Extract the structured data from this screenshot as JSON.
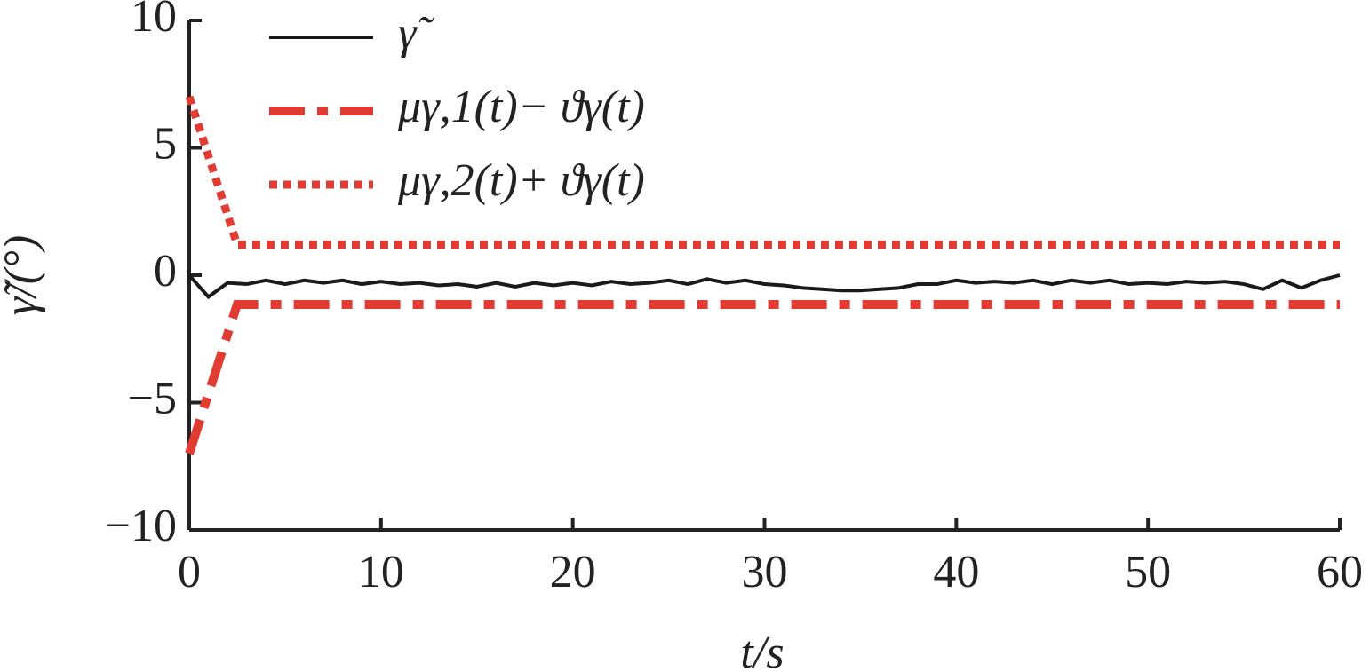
{
  "chart_data": {
    "type": "line",
    "xlabel": "t/s",
    "ylabel": "γ̃/(°)",
    "xlim": [
      0,
      60
    ],
    "ylim": [
      -10,
      10
    ],
    "xticks": [
      0,
      10,
      20,
      30,
      40,
      50,
      60
    ],
    "yticks": [
      {
        "value": -10,
        "label": "−10"
      },
      {
        "value": -5,
        "label": "−5"
      },
      0,
      5,
      10
    ],
    "grid": false,
    "legend": "upper left",
    "series": [
      {
        "name": "γ̃",
        "color": "#1a1a1a",
        "style": "solid",
        "x": [
          0,
          1,
          2,
          3,
          4,
          5,
          6,
          7,
          8,
          9,
          10,
          11,
          12,
          13,
          14,
          15,
          16,
          17,
          18,
          19,
          20,
          21,
          22,
          23,
          24,
          25,
          26,
          27,
          28,
          29,
          30,
          31,
          32,
          33,
          34,
          35,
          36,
          37,
          38,
          39,
          40,
          41,
          42,
          43,
          44,
          45,
          46,
          47,
          48,
          49,
          50,
          51,
          52,
          53,
          54,
          55,
          56,
          57,
          58,
          59,
          60
        ],
        "values": [
          0,
          -0.85,
          -0.3,
          -0.35,
          -0.2,
          -0.35,
          -0.2,
          -0.3,
          -0.2,
          -0.35,
          -0.25,
          -0.35,
          -0.3,
          -0.4,
          -0.35,
          -0.45,
          -0.3,
          -0.45,
          -0.3,
          -0.4,
          -0.3,
          -0.4,
          -0.25,
          -0.35,
          -0.3,
          -0.2,
          -0.35,
          -0.15,
          -0.3,
          -0.2,
          -0.35,
          -0.4,
          -0.5,
          -0.55,
          -0.6,
          -0.6,
          -0.55,
          -0.5,
          -0.35,
          -0.35,
          -0.2,
          -0.3,
          -0.25,
          -0.3,
          -0.2,
          -0.35,
          -0.2,
          -0.3,
          -0.2,
          -0.35,
          -0.3,
          -0.35,
          -0.25,
          -0.3,
          -0.25,
          -0.35,
          -0.55,
          -0.2,
          -0.5,
          -0.2,
          0
        ]
      },
      {
        "name": "μγ,1(t)− ϑγ(t)",
        "color": "#e03c31",
        "style": "dashdot",
        "x": [
          0,
          2.5,
          60
        ],
        "values": [
          -7,
          -1.15,
          -1.15
        ]
      },
      {
        "name": "μγ,2(t)+ ϑγ(t)",
        "color": "#e03c31",
        "style": "dotted",
        "x": [
          0,
          2.5,
          60
        ],
        "values": [
          7,
          1.2,
          1.2
        ]
      }
    ]
  }
}
